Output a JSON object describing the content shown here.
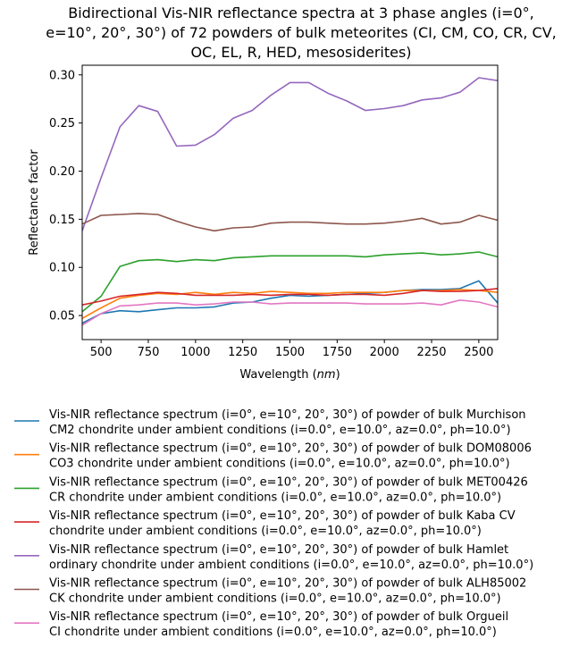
{
  "chart_data": {
    "type": "line",
    "title_lines": [
      "Bidirectional Vis-NIR reflectance spectra at 3 phase angles (i=0°,",
      "e=10°, 20°, 30°) of 72 powders of bulk meteorites (CI, CM, CO, CR, CV,",
      "OC, EL, R, HED, mesosiderites)"
    ],
    "xlabel_text": "Wavelength (",
    "xlabel_unit": "nm",
    "xlabel_close": ")",
    "ylabel": "Reflectance factor",
    "xlim": [
      400,
      2600
    ],
    "ylim": [
      0.025,
      0.31
    ],
    "xticks": [
      500,
      750,
      1000,
      1250,
      1500,
      1750,
      2000,
      2250,
      2500
    ],
    "yticks": [
      0.05,
      0.1,
      0.15,
      0.2,
      0.25,
      0.3
    ],
    "ytick_labels": [
      "0.05",
      "0.10",
      "0.15",
      "0.20",
      "0.25",
      "0.30"
    ],
    "grid": false,
    "legend_position": "below",
    "series": [
      {
        "name_line1": "Vis-NIR reflectance spectrum (i=0°, e=10°, 20°, 30°) of powder of bulk Murchison",
        "name_line2": "CM2 chondrite under ambient conditions (i=0.0°, e=10.0°, az=0.0°, ph=10.0°)",
        "color": "#1f77b4",
        "x": [
          400,
          500,
          600,
          700,
          800,
          900,
          1000,
          1100,
          1200,
          1300,
          1400,
          1500,
          1600,
          1700,
          1800,
          1900,
          2000,
          2100,
          2200,
          2300,
          2400,
          2500,
          2600
        ],
        "y": [
          0.042,
          0.052,
          0.055,
          0.054,
          0.056,
          0.058,
          0.058,
          0.059,
          0.063,
          0.064,
          0.068,
          0.071,
          0.07,
          0.071,
          0.072,
          0.073,
          0.074,
          0.076,
          0.077,
          0.077,
          0.078,
          0.086,
          0.063
        ]
      },
      {
        "name_line1": "Vis-NIR reflectance spectrum (i=0°, e=10°, 20°, 30°) of powder of bulk DOM08006",
        "name_line2": "CO3 chondrite under ambient conditions (i=0.0°, e=10.0°, az=0.0°, ph=10.0°)",
        "color": "#ff7f0e",
        "x": [
          400,
          500,
          600,
          700,
          800,
          900,
          1000,
          1100,
          1200,
          1300,
          1400,
          1500,
          1600,
          1700,
          1800,
          1900,
          2000,
          2100,
          2200,
          2300,
          2400,
          2500,
          2600
        ],
        "y": [
          0.047,
          0.058,
          0.068,
          0.071,
          0.073,
          0.072,
          0.074,
          0.072,
          0.074,
          0.073,
          0.075,
          0.074,
          0.073,
          0.073,
          0.074,
          0.074,
          0.074,
          0.076,
          0.076,
          0.076,
          0.077,
          0.076,
          0.074
        ]
      },
      {
        "name_line1": "Vis-NIR reflectance spectrum (i=0°, e=10°, 20°, 30°) of powder of bulk MET00426",
        "name_line2": "CR chondrite under ambient conditions (i=0.0°, e=10.0°, az=0.0°, ph=10.0°)",
        "color": "#2ca02c",
        "x": [
          400,
          500,
          600,
          700,
          800,
          900,
          1000,
          1100,
          1200,
          1300,
          1400,
          1500,
          1600,
          1700,
          1800,
          1900,
          2000,
          2100,
          2200,
          2300,
          2400,
          2500,
          2600
        ],
        "y": [
          0.054,
          0.07,
          0.101,
          0.107,
          0.108,
          0.106,
          0.108,
          0.107,
          0.11,
          0.111,
          0.112,
          0.112,
          0.112,
          0.112,
          0.112,
          0.111,
          0.113,
          0.114,
          0.115,
          0.113,
          0.114,
          0.116,
          0.111
        ]
      },
      {
        "name_line1": "Vis-NIR reflectance spectrum (i=0°, e=10°, 20°, 30°) of powder of bulk Kaba CV",
        "name_line2": "chondrite under ambient conditions (i=0.0°, e=10.0°, az=0.0°, ph=10.0°)",
        "color": "#d62728",
        "x": [
          400,
          500,
          600,
          700,
          800,
          900,
          1000,
          1100,
          1200,
          1300,
          1400,
          1500,
          1600,
          1700,
          1800,
          1900,
          2000,
          2100,
          2200,
          2300,
          2400,
          2500,
          2600
        ],
        "y": [
          0.061,
          0.065,
          0.07,
          0.072,
          0.074,
          0.073,
          0.071,
          0.071,
          0.071,
          0.072,
          0.071,
          0.072,
          0.072,
          0.071,
          0.072,
          0.072,
          0.071,
          0.073,
          0.076,
          0.075,
          0.075,
          0.076,
          0.078
        ]
      },
      {
        "name_line1": "Vis-NIR reflectance spectrum (i=0°, e=10°, 20°, 30°) of powder of bulk Hamlet",
        "name_line2": "ordinary chondrite under ambient conditions (i=0.0°, e=10.0°, az=0.0°, ph=10.0°)",
        "color": "#9467bd",
        "x": [
          400,
          500,
          600,
          700,
          800,
          900,
          1000,
          1100,
          1200,
          1300,
          1400,
          1500,
          1600,
          1700,
          1800,
          1900,
          2000,
          2100,
          2200,
          2300,
          2400,
          2500,
          2600
        ],
        "y": [
          0.138,
          0.193,
          0.246,
          0.268,
          0.262,
          0.226,
          0.227,
          0.238,
          0.255,
          0.263,
          0.279,
          0.292,
          0.292,
          0.281,
          0.273,
          0.263,
          0.265,
          0.268,
          0.274,
          0.276,
          0.282,
          0.297,
          0.294
        ]
      },
      {
        "name_line1": "Vis-NIR reflectance spectrum (i=0°, e=10°, 20°, 30°) of powder of bulk ALH85002",
        "name_line2": "CK chondrite under ambient conditions (i=0.0°, e=10.0°, az=0.0°, ph=10.0°)",
        "color": "#8c564b",
        "x": [
          400,
          500,
          600,
          700,
          800,
          900,
          1000,
          1100,
          1200,
          1300,
          1400,
          1500,
          1600,
          1700,
          1800,
          1900,
          2000,
          2100,
          2200,
          2300,
          2400,
          2500,
          2600
        ],
        "y": [
          0.145,
          0.154,
          0.155,
          0.156,
          0.155,
          0.148,
          0.142,
          0.138,
          0.141,
          0.142,
          0.146,
          0.147,
          0.147,
          0.146,
          0.145,
          0.145,
          0.146,
          0.148,
          0.151,
          0.145,
          0.147,
          0.154,
          0.149
        ]
      },
      {
        "name_line1": "Vis-NIR reflectance spectrum (i=0°, e=10°, 20°, 30°) of powder of bulk Orgueil",
        "name_line2": "CI chondrite under ambient conditions (i=0.0°, e=10.0°, az=0.0°, ph=10.0°)",
        "color": "#e377c2",
        "x": [
          400,
          500,
          600,
          700,
          800,
          900,
          1000,
          1100,
          1200,
          1300,
          1400,
          1500,
          1600,
          1700,
          1800,
          1900,
          2000,
          2100,
          2200,
          2300,
          2400,
          2500,
          2600
        ],
        "y": [
          0.04,
          0.052,
          0.06,
          0.061,
          0.063,
          0.063,
          0.061,
          0.062,
          0.064,
          0.064,
          0.062,
          0.063,
          0.063,
          0.063,
          0.063,
          0.062,
          0.062,
          0.062,
          0.063,
          0.061,
          0.066,
          0.064,
          0.059
        ]
      }
    ]
  }
}
